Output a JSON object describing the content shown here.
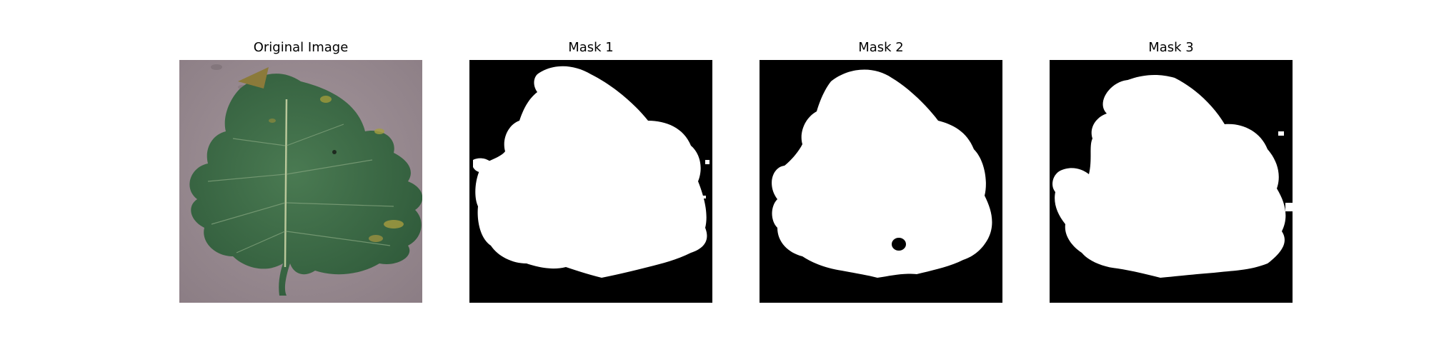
{
  "figure": {
    "panels": [
      {
        "title": "Original Image"
      },
      {
        "title": "Mask 1"
      },
      {
        "title": "Mask 2"
      },
      {
        "title": "Mask 3"
      }
    ]
  },
  "colors": {
    "background": "#ffffff",
    "mask_foreground": "#ffffff",
    "mask_background": "#000000",
    "leaf": "#3f6e48",
    "surface": "#9a8c92"
  }
}
